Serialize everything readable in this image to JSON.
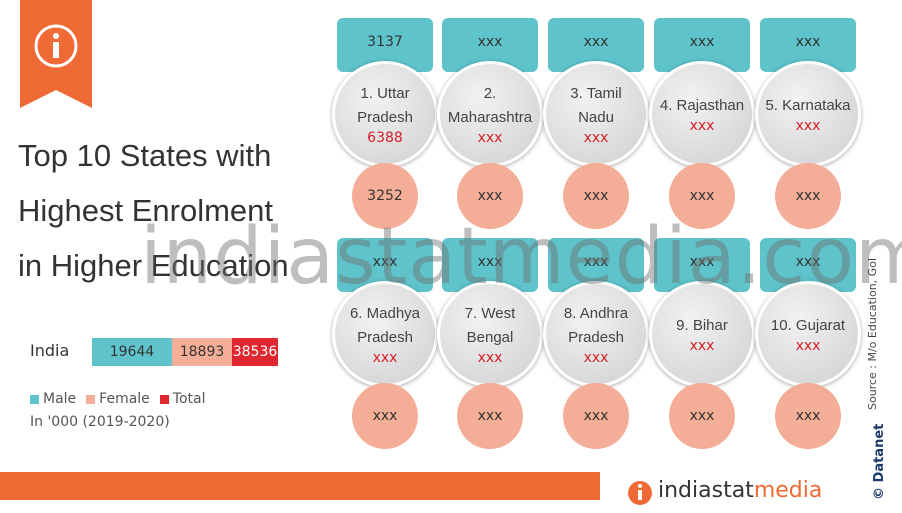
{
  "title_lines": [
    "Top 10 States with",
    "Highest Enrolment",
    "in Higher Education"
  ],
  "india": {
    "label": "India",
    "male": "19644",
    "female": "18893",
    "total": "38536"
  },
  "legend": [
    "Male",
    "Female",
    "Total"
  ],
  "unit_note": "In '000 (2019-2020)",
  "watermark": "indiastatmedia.com",
  "source": "Source : M/o Education, GoI",
  "brand": "Datanet",
  "copyright": "©",
  "footer_brand": [
    "indiastat",
    "media"
  ],
  "states": [
    {
      "name": "1. Uttar Pradesh",
      "male": "3137",
      "total": "6388",
      "female": "3252"
    },
    {
      "name": "2. Maharashtra",
      "male": "xxx",
      "total": "xxx",
      "female": "xxx"
    },
    {
      "name": "3. Tamil Nadu",
      "male": "xxx",
      "total": "xxx",
      "female": "xxx"
    },
    {
      "name": "4. Rajasthan",
      "male": "xxx",
      "total": "xxx",
      "female": "xxx"
    },
    {
      "name": "5. Karnataka",
      "male": "xxx",
      "total": "xxx",
      "female": "xxx"
    },
    {
      "name": "6. Madhya Pradesh",
      "male": "xxx",
      "total": "xxx",
      "female": "xxx"
    },
    {
      "name": "7. West Bengal",
      "male": "xxx",
      "total": "xxx",
      "female": "xxx"
    },
    {
      "name": "8. Andhra Pradesh",
      "male": "xxx",
      "total": "xxx",
      "female": "xxx"
    },
    {
      "name": "9. Bihar",
      "male": "xxx",
      "total": "xxx",
      "female": "xxx"
    },
    {
      "name": "10. Gujarat",
      "male": "xxx",
      "total": "xxx",
      "female": "xxx"
    }
  ]
}
